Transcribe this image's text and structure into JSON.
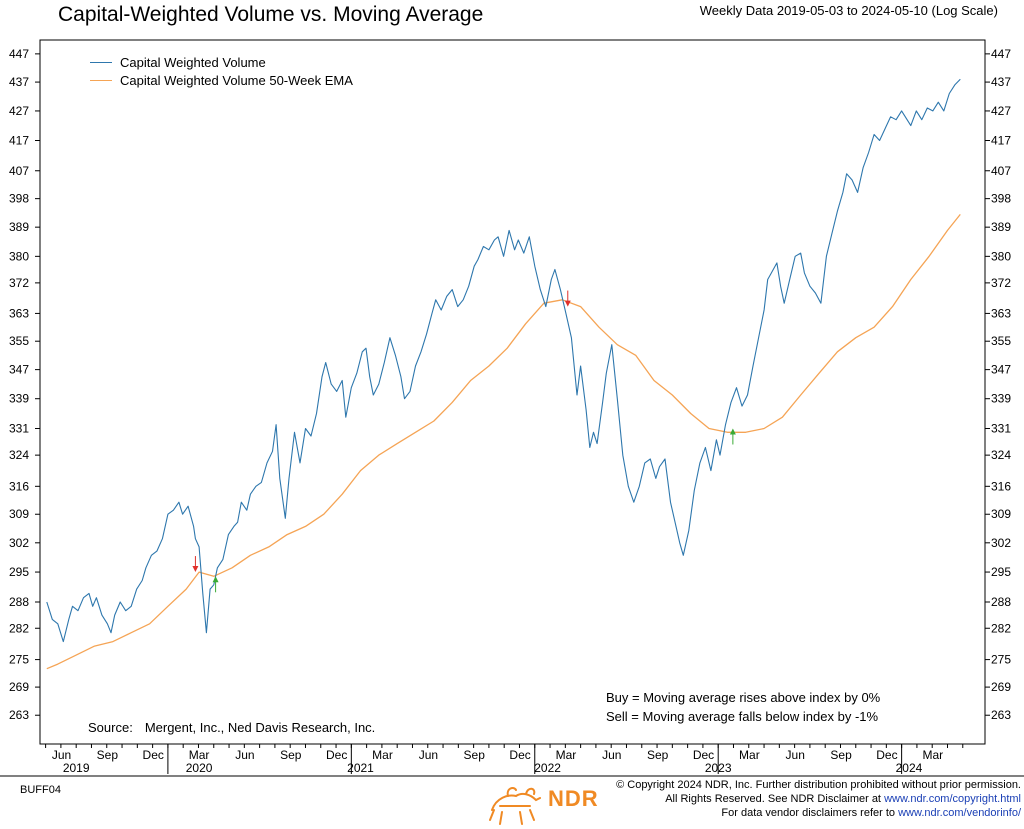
{
  "header": {
    "title": "Capital-Weighted Volume vs. Moving Average",
    "subtitle": "Weekly Data 2019-05-03 to 2024-05-10 (Log Scale)"
  },
  "legend": {
    "items": [
      {
        "label": "Capital Weighted Volume",
        "color": "#2e77ad"
      },
      {
        "label": "Capital Weighted Volume 50-Week EMA",
        "color": "#f5a455"
      }
    ]
  },
  "rules": {
    "buy": "Buy = Moving average rises above index by 0%",
    "sell": "Sell = Moving average falls below index by -1%"
  },
  "source": {
    "label": "Source:",
    "text": "Mergent, Inc., Ned Davis Research, Inc."
  },
  "footer": {
    "code": "BUFF04",
    "line1": "© Copyright 2024 NDR, Inc. Further distribution prohibited without prior permission.",
    "line2_text": "All Rights Reserved. See NDR Disclaimer at",
    "line2_link": "www.ndr.com/copyright.html",
    "line3_text": "For data vendor disclaimers refer to",
    "line3_link": "www.ndr.com/vendorinfo/",
    "logo_text": "NDR"
  },
  "chart_data": {
    "type": "line",
    "scale": "log",
    "title": "Capital-Weighted Volume vs. Moving Average",
    "ylim": [
      257,
      452
    ],
    "y_ticks": [
      263,
      269,
      275,
      282,
      288,
      295,
      302,
      309,
      316,
      324,
      331,
      339,
      347,
      355,
      363,
      372,
      380,
      389,
      398,
      407,
      417,
      427,
      437,
      447
    ],
    "x_range": [
      2019.33,
      2024.4
    ],
    "x_month_ticks": [
      {
        "label": "Jun",
        "x": 2019.42
      },
      {
        "label": "Sep",
        "x": 2019.67
      },
      {
        "label": "Dec",
        "x": 2019.92
      },
      {
        "label": "Mar",
        "x": 2020.17
      },
      {
        "label": "Jun",
        "x": 2020.42
      },
      {
        "label": "Sep",
        "x": 2020.67
      },
      {
        "label": "Dec",
        "x": 2020.92
      },
      {
        "label": "Mar",
        "x": 2021.17
      },
      {
        "label": "Jun",
        "x": 2021.42
      },
      {
        "label": "Sep",
        "x": 2021.67
      },
      {
        "label": "Dec",
        "x": 2021.92
      },
      {
        "label": "Mar",
        "x": 2022.17
      },
      {
        "label": "Jun",
        "x": 2022.42
      },
      {
        "label": "Sep",
        "x": 2022.67
      },
      {
        "label": "Dec",
        "x": 2022.92
      },
      {
        "label": "Mar",
        "x": 2023.17
      },
      {
        "label": "Jun",
        "x": 2023.42
      },
      {
        "label": "Sep",
        "x": 2023.67
      },
      {
        "label": "Dec",
        "x": 2023.92
      },
      {
        "label": "Mar",
        "x": 2024.17
      }
    ],
    "x_year_labels": [
      {
        "label": "2019",
        "x": 2019.5
      },
      {
        "label": "2020",
        "x": 2020.17
      },
      {
        "label": "2021",
        "x": 2021.05
      },
      {
        "label": "2022",
        "x": 2022.07
      },
      {
        "label": "2023",
        "x": 2023.0
      },
      {
        "label": "2024",
        "x": 2024.04
      }
    ],
    "x_year_boundaries": [
      2020.0,
      2021.0,
      2022.0,
      2023.0,
      2024.0
    ],
    "series": [
      {
        "name": "Capital Weighted Volume",
        "color": "#2e77ad",
        "points": [
          [
            2019.34,
            288
          ],
          [
            2019.37,
            284
          ],
          [
            2019.4,
            283
          ],
          [
            2019.43,
            279
          ],
          [
            2019.46,
            284
          ],
          [
            2019.48,
            287
          ],
          [
            2019.51,
            286
          ],
          [
            2019.54,
            289
          ],
          [
            2019.57,
            290
          ],
          [
            2019.59,
            287
          ],
          [
            2019.61,
            289
          ],
          [
            2019.64,
            285
          ],
          [
            2019.67,
            283
          ],
          [
            2019.69,
            281
          ],
          [
            2019.71,
            285
          ],
          [
            2019.74,
            288
          ],
          [
            2019.77,
            286
          ],
          [
            2019.8,
            287
          ],
          [
            2019.83,
            291
          ],
          [
            2019.86,
            293
          ],
          [
            2019.88,
            296
          ],
          [
            2019.91,
            299
          ],
          [
            2019.94,
            300
          ],
          [
            2019.97,
            303
          ],
          [
            2020.0,
            309
          ],
          [
            2020.03,
            310
          ],
          [
            2020.06,
            312
          ],
          [
            2020.08,
            309
          ],
          [
            2020.11,
            311
          ],
          [
            2020.14,
            306
          ],
          [
            2020.15,
            303
          ],
          [
            2020.17,
            301
          ],
          [
            2020.19,
            290
          ],
          [
            2020.21,
            281
          ],
          [
            2020.23,
            291
          ],
          [
            2020.25,
            292
          ],
          [
            2020.27,
            296
          ],
          [
            2020.3,
            298
          ],
          [
            2020.33,
            304
          ],
          [
            2020.36,
            306
          ],
          [
            2020.38,
            307
          ],
          [
            2020.4,
            312
          ],
          [
            2020.43,
            310
          ],
          [
            2020.45,
            314
          ],
          [
            2020.48,
            316
          ],
          [
            2020.51,
            317
          ],
          [
            2020.54,
            322
          ],
          [
            2020.57,
            325
          ],
          [
            2020.59,
            332
          ],
          [
            2020.61,
            318
          ],
          [
            2020.64,
            308
          ],
          [
            2020.66,
            318
          ],
          [
            2020.69,
            330
          ],
          [
            2020.72,
            322
          ],
          [
            2020.75,
            331
          ],
          [
            2020.78,
            329
          ],
          [
            2020.81,
            335
          ],
          [
            2020.84,
            345
          ],
          [
            2020.86,
            349
          ],
          [
            2020.89,
            343
          ],
          [
            2020.92,
            341
          ],
          [
            2020.95,
            344
          ],
          [
            2020.97,
            334
          ],
          [
            2021.0,
            342
          ],
          [
            2021.03,
            346
          ],
          [
            2021.06,
            352
          ],
          [
            2021.08,
            353
          ],
          [
            2021.1,
            345
          ],
          [
            2021.12,
            340
          ],
          [
            2021.15,
            343
          ],
          [
            2021.18,
            349
          ],
          [
            2021.21,
            356
          ],
          [
            2021.24,
            351
          ],
          [
            2021.27,
            345
          ],
          [
            2021.29,
            339
          ],
          [
            2021.32,
            341
          ],
          [
            2021.35,
            348
          ],
          [
            2021.38,
            352
          ],
          [
            2021.41,
            357
          ],
          [
            2021.44,
            363
          ],
          [
            2021.46,
            367
          ],
          [
            2021.49,
            364
          ],
          [
            2021.52,
            368
          ],
          [
            2021.55,
            370
          ],
          [
            2021.58,
            365
          ],
          [
            2021.61,
            367
          ],
          [
            2021.64,
            371
          ],
          [
            2021.67,
            377
          ],
          [
            2021.69,
            379
          ],
          [
            2021.72,
            383
          ],
          [
            2021.75,
            382
          ],
          [
            2021.78,
            385
          ],
          [
            2021.8,
            386
          ],
          [
            2021.83,
            380
          ],
          [
            2021.86,
            388
          ],
          [
            2021.89,
            382
          ],
          [
            2021.91,
            385
          ],
          [
            2021.94,
            381
          ],
          [
            2021.97,
            386
          ],
          [
            2022.0,
            377
          ],
          [
            2022.03,
            370
          ],
          [
            2022.06,
            365
          ],
          [
            2022.09,
            373
          ],
          [
            2022.11,
            376
          ],
          [
            2022.14,
            370
          ],
          [
            2022.17,
            363
          ],
          [
            2022.2,
            356
          ],
          [
            2022.23,
            340
          ],
          [
            2022.25,
            348
          ],
          [
            2022.28,
            336
          ],
          [
            2022.3,
            326
          ],
          [
            2022.32,
            330
          ],
          [
            2022.34,
            327
          ],
          [
            2022.37,
            338
          ],
          [
            2022.39,
            346
          ],
          [
            2022.42,
            354
          ],
          [
            2022.45,
            339
          ],
          [
            2022.48,
            324
          ],
          [
            2022.51,
            316
          ],
          [
            2022.54,
            312
          ],
          [
            2022.57,
            316
          ],
          [
            2022.6,
            322
          ],
          [
            2022.63,
            323
          ],
          [
            2022.66,
            318
          ],
          [
            2022.68,
            321
          ],
          [
            2022.71,
            323
          ],
          [
            2022.74,
            312
          ],
          [
            2022.77,
            306
          ],
          [
            2022.79,
            302
          ],
          [
            2022.81,
            299
          ],
          [
            2022.84,
            305
          ],
          [
            2022.87,
            315
          ],
          [
            2022.9,
            322
          ],
          [
            2022.93,
            326
          ],
          [
            2022.96,
            320
          ],
          [
            2022.99,
            328
          ],
          [
            2023.01,
            324
          ],
          [
            2023.04,
            332
          ],
          [
            2023.07,
            338
          ],
          [
            2023.1,
            342
          ],
          [
            2023.13,
            337
          ],
          [
            2023.16,
            340
          ],
          [
            2023.19,
            348
          ],
          [
            2023.22,
            356
          ],
          [
            2023.25,
            364
          ],
          [
            2023.27,
            373
          ],
          [
            2023.29,
            375
          ],
          [
            2023.32,
            378
          ],
          [
            2023.34,
            371
          ],
          [
            2023.36,
            366
          ],
          [
            2023.39,
            373
          ],
          [
            2023.42,
            380
          ],
          [
            2023.45,
            381
          ],
          [
            2023.47,
            375
          ],
          [
            2023.5,
            371
          ],
          [
            2023.53,
            369
          ],
          [
            2023.56,
            366
          ],
          [
            2023.59,
            380
          ],
          [
            2023.62,
            387
          ],
          [
            2023.65,
            394
          ],
          [
            2023.68,
            400
          ],
          [
            2023.7,
            406
          ],
          [
            2023.73,
            404
          ],
          [
            2023.76,
            400
          ],
          [
            2023.79,
            408
          ],
          [
            2023.82,
            413
          ],
          [
            2023.85,
            419
          ],
          [
            2023.88,
            417
          ],
          [
            2023.91,
            421
          ],
          [
            2023.94,
            425
          ],
          [
            2023.97,
            424
          ],
          [
            2024.0,
            427
          ],
          [
            2024.03,
            424
          ],
          [
            2024.05,
            422
          ],
          [
            2024.08,
            427
          ],
          [
            2024.11,
            424
          ],
          [
            2024.14,
            428
          ],
          [
            2024.17,
            427
          ],
          [
            2024.2,
            430
          ],
          [
            2024.23,
            427
          ],
          [
            2024.26,
            433
          ],
          [
            2024.29,
            436
          ],
          [
            2024.32,
            438
          ]
        ]
      },
      {
        "name": "Capital Weighted Volume 50-Week EMA",
        "color": "#f5a455",
        "points": [
          [
            2019.34,
            273
          ],
          [
            2019.4,
            274
          ],
          [
            2019.5,
            276
          ],
          [
            2019.6,
            278
          ],
          [
            2019.7,
            279
          ],
          [
            2019.8,
            281
          ],
          [
            2019.9,
            283
          ],
          [
            2020.0,
            287
          ],
          [
            2020.1,
            291
          ],
          [
            2020.17,
            295
          ],
          [
            2020.25,
            294
          ],
          [
            2020.35,
            296
          ],
          [
            2020.45,
            299
          ],
          [
            2020.55,
            301
          ],
          [
            2020.65,
            304
          ],
          [
            2020.75,
            306
          ],
          [
            2020.85,
            309
          ],
          [
            2020.95,
            314
          ],
          [
            2021.05,
            320
          ],
          [
            2021.15,
            324
          ],
          [
            2021.25,
            327
          ],
          [
            2021.35,
            330
          ],
          [
            2021.45,
            333
          ],
          [
            2021.55,
            338
          ],
          [
            2021.65,
            344
          ],
          [
            2021.75,
            348
          ],
          [
            2021.85,
            353
          ],
          [
            2021.95,
            360
          ],
          [
            2022.05,
            366
          ],
          [
            2022.15,
            367
          ],
          [
            2022.25,
            365
          ],
          [
            2022.35,
            359
          ],
          [
            2022.45,
            354
          ],
          [
            2022.55,
            351
          ],
          [
            2022.65,
            344
          ],
          [
            2022.75,
            340
          ],
          [
            2022.85,
            335
          ],
          [
            2022.95,
            331
          ],
          [
            2023.05,
            330
          ],
          [
            2023.15,
            330
          ],
          [
            2023.25,
            331
          ],
          [
            2023.35,
            334
          ],
          [
            2023.45,
            340
          ],
          [
            2023.55,
            346
          ],
          [
            2023.65,
            352
          ],
          [
            2023.75,
            356
          ],
          [
            2023.85,
            359
          ],
          [
            2023.95,
            365
          ],
          [
            2024.05,
            373
          ],
          [
            2024.15,
            380
          ],
          [
            2024.25,
            388
          ],
          [
            2024.32,
            393
          ]
        ]
      }
    ],
    "signals": [
      {
        "type": "sell",
        "x": 2020.15,
        "y": 295,
        "color": "#e0302a"
      },
      {
        "type": "buy",
        "x": 2020.26,
        "y": 294,
        "color": "#3aaa35"
      },
      {
        "type": "sell",
        "x": 2022.18,
        "y": 365,
        "color": "#e0302a"
      },
      {
        "type": "buy",
        "x": 2023.08,
        "y": 331,
        "color": "#3aaa35"
      }
    ]
  }
}
